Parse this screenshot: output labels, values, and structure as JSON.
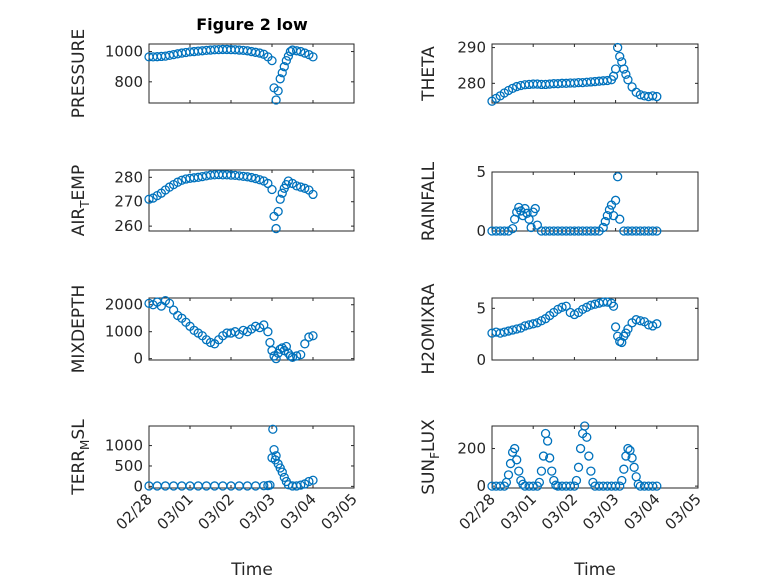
{
  "figure": {
    "title": "Figure 2 low"
  },
  "colors": {
    "series": "#0072BD",
    "axis": "#262626"
  },
  "chart_data": [
    {
      "type": "scatter",
      "id": "pressure",
      "ylabel": "PRESSURE",
      "xlim": [
        0,
        5
      ],
      "ylim": [
        660,
        1050
      ],
      "yticks": [
        800,
        1000
      ],
      "x": [
        0.0,
        0.1,
        0.2,
        0.3,
        0.4,
        0.5,
        0.6,
        0.7,
        0.8,
        0.9,
        1.0,
        1.1,
        1.2,
        1.3,
        1.4,
        1.5,
        1.6,
        1.7,
        1.8,
        1.9,
        2.0,
        2.1,
        2.2,
        2.3,
        2.4,
        2.5,
        2.6,
        2.7,
        2.8,
        2.9,
        3.0,
        3.05,
        3.1,
        3.15,
        3.2,
        3.25,
        3.3,
        3.35,
        3.4,
        3.45,
        3.5,
        3.6,
        3.7,
        3.8,
        3.9,
        4.0
      ],
      "y": [
        965,
        965,
        966,
        968,
        970,
        975,
        980,
        985,
        990,
        994,
        998,
        1000,
        1003,
        1005,
        1008,
        1010,
        1012,
        1013,
        1014,
        1014,
        1013,
        1012,
        1010,
        1008,
        1005,
        1000,
        995,
        990,
        982,
        965,
        940,
        760,
        680,
        740,
        820,
        860,
        900,
        940,
        970,
        1000,
        1010,
        1005,
        1000,
        990,
        980,
        965
      ]
    },
    {
      "type": "scatter",
      "id": "theta",
      "ylabel": "THETA",
      "xlim": [
        0,
        5
      ],
      "ylim": [
        274.5,
        291
      ],
      "yticks": [
        280,
        290
      ],
      "x": [
        0.0,
        0.1,
        0.2,
        0.3,
        0.4,
        0.5,
        0.6,
        0.7,
        0.8,
        0.9,
        1.0,
        1.1,
        1.2,
        1.3,
        1.4,
        1.5,
        1.6,
        1.7,
        1.8,
        1.9,
        2.0,
        2.1,
        2.2,
        2.3,
        2.4,
        2.5,
        2.6,
        2.7,
        2.8,
        2.9,
        2.95,
        3.0,
        3.05,
        3.1,
        3.15,
        3.2,
        3.25,
        3.3,
        3.4,
        3.5,
        3.6,
        3.7,
        3.8,
        3.9,
        4.0
      ],
      "y": [
        275.0,
        275.8,
        276.5,
        277.3,
        278.0,
        278.6,
        279.1,
        279.4,
        279.6,
        279.7,
        279.8,
        279.8,
        279.7,
        279.7,
        279.8,
        279.9,
        279.9,
        280.0,
        280.0,
        280.1,
        280.1,
        280.2,
        280.2,
        280.3,
        280.4,
        280.5,
        280.6,
        280.7,
        280.8,
        281.0,
        282.0,
        284.0,
        290.0,
        287.5,
        286.0,
        284.0,
        282.5,
        281.0,
        279.0,
        277.5,
        276.8,
        276.5,
        276.3,
        276.5,
        276.3
      ]
    },
    {
      "type": "scatter",
      "id": "air_temp",
      "ylabel": "AIR_TEMP",
      "ylabel_parts": [
        "AIR",
        "T",
        "EMP"
      ],
      "xlim": [
        0,
        5
      ],
      "ylim": [
        258,
        283
      ],
      "yticks": [
        260,
        270,
        280
      ],
      "x": [
        0.0,
        0.1,
        0.2,
        0.3,
        0.4,
        0.5,
        0.6,
        0.7,
        0.8,
        0.9,
        1.0,
        1.1,
        1.2,
        1.3,
        1.4,
        1.5,
        1.6,
        1.7,
        1.8,
        1.9,
        2.0,
        2.1,
        2.2,
        2.3,
        2.4,
        2.5,
        2.6,
        2.7,
        2.8,
        2.9,
        3.0,
        3.05,
        3.1,
        3.15,
        3.2,
        3.25,
        3.3,
        3.35,
        3.4,
        3.5,
        3.6,
        3.7,
        3.8,
        3.9,
        4.0
      ],
      "y": [
        271.0,
        271.5,
        272.5,
        273.5,
        274.8,
        276.0,
        277.0,
        278.0,
        278.8,
        279.3,
        279.6,
        279.8,
        280.0,
        280.3,
        280.6,
        280.9,
        281.0,
        281.1,
        281.0,
        281.0,
        280.9,
        280.8,
        280.6,
        280.4,
        280.2,
        279.9,
        279.5,
        279.0,
        278.5,
        277.5,
        275.0,
        264.0,
        259.0,
        266.0,
        271.0,
        273.5,
        275.5,
        277.0,
        278.5,
        277.5,
        276.5,
        276.0,
        275.5,
        274.8,
        273.0
      ]
    },
    {
      "type": "scatter",
      "id": "rainfall",
      "ylabel": "RAINFALL",
      "xlim": [
        0,
        5
      ],
      "ylim": [
        0,
        5
      ],
      "yticks": [
        0,
        5
      ],
      "x": [
        0.0,
        0.1,
        0.2,
        0.3,
        0.4,
        0.5,
        0.55,
        0.6,
        0.65,
        0.7,
        0.75,
        0.8,
        0.85,
        0.9,
        0.95,
        1.0,
        1.05,
        1.1,
        1.2,
        1.3,
        1.4,
        1.5,
        1.6,
        1.7,
        1.8,
        1.9,
        2.0,
        2.1,
        2.2,
        2.3,
        2.4,
        2.5,
        2.6,
        2.7,
        2.75,
        2.8,
        2.85,
        2.9,
        2.95,
        3.0,
        3.05,
        3.1,
        3.2,
        3.3,
        3.4,
        3.5,
        3.6,
        3.7,
        3.8,
        3.9,
        4.0
      ],
      "y": [
        0,
        0,
        0,
        0,
        0,
        0.2,
        1.0,
        1.6,
        2.0,
        1.7,
        1.3,
        1.9,
        1.5,
        1.0,
        0.3,
        1.6,
        1.9,
        0.5,
        0,
        0,
        0,
        0,
        0,
        0,
        0,
        0,
        0,
        0,
        0,
        0,
        0,
        0,
        0,
        0.3,
        0.8,
        1.3,
        1.8,
        2.2,
        1.3,
        2.6,
        4.6,
        1.0,
        0,
        0,
        0,
        0,
        0,
        0,
        0,
        0,
        0
      ]
    },
    {
      "type": "scatter",
      "id": "mixdepth",
      "ylabel": "MIXDEPTH",
      "xlim": [
        0,
        5
      ],
      "ylim": [
        -50,
        2250
      ],
      "yticks": [
        0,
        1000,
        2000
      ],
      "x": [
        0.0,
        0.1,
        0.2,
        0.3,
        0.4,
        0.5,
        0.6,
        0.7,
        0.8,
        0.9,
        1.0,
        1.1,
        1.2,
        1.3,
        1.4,
        1.5,
        1.6,
        1.7,
        1.8,
        1.9,
        2.0,
        2.1,
        2.2,
        2.3,
        2.4,
        2.5,
        2.6,
        2.7,
        2.8,
        2.9,
        2.95,
        3.0,
        3.05,
        3.1,
        3.15,
        3.2,
        3.25,
        3.3,
        3.35,
        3.4,
        3.45,
        3.5,
        3.6,
        3.7,
        3.8,
        3.9,
        4.0
      ],
      "y": [
        2050,
        2000,
        2100,
        1950,
        2150,
        2050,
        1800,
        1600,
        1500,
        1350,
        1200,
        1050,
        950,
        850,
        700,
        600,
        550,
        700,
        850,
        950,
        950,
        1000,
        900,
        1050,
        1000,
        1100,
        1200,
        1150,
        1250,
        1000,
        600,
        300,
        100,
        0,
        200,
        350,
        400,
        300,
        450,
        200,
        100,
        50,
        100,
        150,
        550,
        800,
        850
      ]
    },
    {
      "type": "scatter",
      "id": "h2omixra",
      "ylabel": "H2OMIXRA",
      "xlim": [
        0,
        5
      ],
      "ylim": [
        0,
        6
      ],
      "yticks": [
        0,
        5
      ],
      "x": [
        0.0,
        0.1,
        0.2,
        0.3,
        0.4,
        0.5,
        0.6,
        0.7,
        0.8,
        0.9,
        1.0,
        1.1,
        1.2,
        1.3,
        1.4,
        1.5,
        1.6,
        1.7,
        1.8,
        1.9,
        2.0,
        2.1,
        2.2,
        2.3,
        2.4,
        2.5,
        2.6,
        2.7,
        2.8,
        2.9,
        2.95,
        3.0,
        3.05,
        3.1,
        3.15,
        3.2,
        3.25,
        3.3,
        3.4,
        3.5,
        3.6,
        3.7,
        3.8,
        3.9,
        4.0
      ],
      "y": [
        2.6,
        2.7,
        2.6,
        2.7,
        2.8,
        2.9,
        3.0,
        3.1,
        3.3,
        3.4,
        3.5,
        3.6,
        3.8,
        4.0,
        4.3,
        4.6,
        4.9,
        5.1,
        5.2,
        4.6,
        4.4,
        4.6,
        4.9,
        5.1,
        5.3,
        5.4,
        5.5,
        5.6,
        5.6,
        5.5,
        5.2,
        3.2,
        2.3,
        1.8,
        1.7,
        2.3,
        2.6,
        3.0,
        3.6,
        3.9,
        3.8,
        3.7,
        3.4,
        3.3,
        3.5
      ]
    },
    {
      "type": "scatter",
      "id": "terr_msl",
      "ylabel": "TERR_MSL",
      "ylabel_parts": [
        "TERR",
        "M",
        "SL"
      ],
      "xlim": [
        0,
        5
      ],
      "ylim": [
        -40,
        1480
      ],
      "yticks": [
        0,
        500,
        1000
      ],
      "x": [
        0.0,
        0.2,
        0.4,
        0.6,
        0.8,
        1.0,
        1.2,
        1.4,
        1.6,
        1.8,
        2.0,
        2.2,
        2.4,
        2.6,
        2.8,
        2.9,
        2.95,
        3.0,
        3.02,
        3.05,
        3.08,
        3.1,
        3.15,
        3.2,
        3.25,
        3.3,
        3.35,
        3.4,
        3.5,
        3.6,
        3.7,
        3.8,
        3.9,
        4.0
      ],
      "y": [
        10,
        10,
        10,
        10,
        10,
        10,
        10,
        10,
        10,
        10,
        10,
        10,
        10,
        10,
        15,
        20,
        30,
        700,
        1400,
        900,
        650,
        750,
        550,
        450,
        350,
        220,
        120,
        40,
        10,
        10,
        30,
        60,
        120,
        150
      ]
    },
    {
      "type": "scatter",
      "id": "sun_flux",
      "ylabel": "SUN_FLUX",
      "ylabel_parts": [
        "SUN",
        "F",
        "LUX"
      ],
      "xlim": [
        0,
        5
      ],
      "ylim": [
        -10,
        320
      ],
      "yticks": [
        0,
        200
      ],
      "x": [
        0.0,
        0.1,
        0.2,
        0.3,
        0.35,
        0.4,
        0.45,
        0.5,
        0.55,
        0.6,
        0.65,
        0.7,
        0.75,
        0.8,
        0.9,
        1.0,
        1.1,
        1.15,
        1.2,
        1.25,
        1.3,
        1.35,
        1.4,
        1.45,
        1.5,
        1.55,
        1.6,
        1.7,
        1.8,
        1.9,
        2.0,
        2.05,
        2.1,
        2.15,
        2.2,
        2.25,
        2.3,
        2.35,
        2.4,
        2.45,
        2.5,
        2.6,
        2.7,
        2.8,
        2.9,
        3.0,
        3.1,
        3.15,
        3.2,
        3.25,
        3.3,
        3.35,
        3.4,
        3.45,
        3.5,
        3.55,
        3.6,
        3.7,
        3.8,
        3.9,
        4.0
      ],
      "y": [
        0,
        0,
        0,
        0,
        20,
        60,
        120,
        180,
        200,
        140,
        80,
        30,
        10,
        0,
        0,
        0,
        0,
        20,
        80,
        160,
        280,
        240,
        150,
        80,
        30,
        5,
        0,
        0,
        0,
        0,
        0,
        30,
        100,
        200,
        280,
        320,
        260,
        160,
        80,
        20,
        0,
        0,
        0,
        0,
        0,
        0,
        0,
        30,
        90,
        160,
        200,
        190,
        150,
        100,
        50,
        10,
        0,
        0,
        0,
        0,
        0
      ]
    }
  ],
  "x_axis": {
    "label": "Time",
    "tick_values": [
      0,
      1,
      2,
      3,
      4,
      5
    ],
    "tick_labels": [
      "02/28",
      "03/01",
      "03/02",
      "03/03",
      "03/04",
      "03/05"
    ]
  }
}
